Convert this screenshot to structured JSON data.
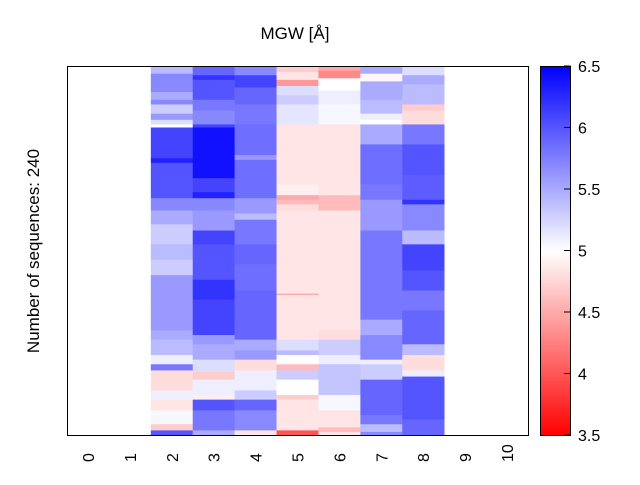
{
  "chart_data": {
    "type": "heatmap",
    "title": "MGW [Å]",
    "ylabel": "Number of sequences: 240",
    "xlabel": "",
    "x_ticks": [
      "0",
      "1",
      "2",
      "3",
      "4",
      "5",
      "6",
      "7",
      "8",
      "9",
      "10"
    ],
    "n_rows": 240,
    "colorbar": {
      "range": [
        3.5,
        6.5
      ],
      "center": 5,
      "ticks": [
        "3.5",
        "4",
        "4.5",
        "5",
        "5.5",
        "6",
        "6.5"
      ],
      "low_color": "#ff0000",
      "mid_color": "#ffffff",
      "high_color": "#0000ff"
    },
    "columns_note": "segments are [end_row, value]; columns 0,1,9,10 have no data",
    "columns": {
      "2": [
        [
          5,
          5.4
        ],
        [
          17,
          5.7
        ],
        [
          22,
          5.5
        ],
        [
          25,
          5.7
        ],
        [
          31,
          5.3
        ],
        [
          35,
          5.6
        ],
        [
          38,
          5.2
        ],
        [
          40,
          5.0
        ],
        [
          60,
          6.1
        ],
        [
          63,
          6.3
        ],
        [
          86,
          6.0
        ],
        [
          94,
          5.7
        ],
        [
          103,
          5.5
        ],
        [
          116,
          5.3
        ],
        [
          126,
          5.4
        ],
        [
          136,
          5.3
        ],
        [
          152,
          5.6
        ],
        [
          172,
          5.6
        ],
        [
          178,
          5.5
        ],
        [
          188,
          5.4
        ],
        [
          194,
          5.1
        ],
        [
          198,
          5.8
        ],
        [
          211,
          4.8
        ],
        [
          217,
          5.1
        ],
        [
          224,
          4.85
        ],
        [
          233,
          5.05
        ],
        [
          237,
          4.7
        ],
        [
          240,
          6.0
        ]
      ],
      "3": [
        [
          6,
          5.9
        ],
        [
          9,
          6.2
        ],
        [
          22,
          6.0
        ],
        [
          29,
          5.8
        ],
        [
          38,
          5.7
        ],
        [
          40,
          6.1
        ],
        [
          61,
          6.4
        ],
        [
          73,
          6.4
        ],
        [
          82,
          6.1
        ],
        [
          86,
          6.3
        ],
        [
          94,
          5.7
        ],
        [
          107,
          5.6
        ],
        [
          116,
          6.1
        ],
        [
          139,
          6.0
        ],
        [
          152,
          6.2
        ],
        [
          175,
          6.1
        ],
        [
          181,
          5.6
        ],
        [
          191,
          5.5
        ],
        [
          199,
          5.2
        ],
        [
          204,
          4.7
        ],
        [
          214,
          5.1
        ],
        [
          217,
          4.9
        ],
        [
          224,
          6.0
        ],
        [
          237,
          5.8
        ],
        [
          240,
          5.5
        ]
      ],
      "4": [
        [
          6,
          5.7
        ],
        [
          14,
          6.1
        ],
        [
          25,
          5.9
        ],
        [
          38,
          5.8
        ],
        [
          58,
          5.85
        ],
        [
          61,
          5.6
        ],
        [
          86,
          5.85
        ],
        [
          96,
          5.6
        ],
        [
          100,
          5.4
        ],
        [
          116,
          5.8
        ],
        [
          129,
          5.9
        ],
        [
          146,
          5.85
        ],
        [
          178,
          5.9
        ],
        [
          185,
          5.5
        ],
        [
          191,
          5.6
        ],
        [
          198,
          4.8
        ],
        [
          211,
          5.1
        ],
        [
          217,
          5.3
        ],
        [
          224,
          5.9
        ],
        [
          237,
          5.7
        ],
        [
          240,
          4.85
        ]
      ],
      "5": [
        [
          4,
          4.7
        ],
        [
          9,
          4.85
        ],
        [
          13,
          4.4
        ],
        [
          19,
          5.2
        ],
        [
          25,
          5.3
        ],
        [
          38,
          5.15
        ],
        [
          77,
          4.85
        ],
        [
          84,
          4.9
        ],
        [
          87,
          4.5
        ],
        [
          90,
          4.6
        ],
        [
          94,
          4.8
        ],
        [
          148,
          4.85
        ],
        [
          149,
          4.5
        ],
        [
          178,
          4.85
        ],
        [
          185,
          5.2
        ],
        [
          188,
          5.4
        ],
        [
          194,
          5.0
        ],
        [
          198,
          4.6
        ],
        [
          204,
          5.3
        ],
        [
          214,
          5.0
        ],
        [
          217,
          4.7
        ],
        [
          237,
          4.85
        ],
        [
          240,
          4.0
        ]
      ],
      "6": [
        [
          3,
          4.5
        ],
        [
          8,
          4.3
        ],
        [
          16,
          5.0
        ],
        [
          25,
          5.1
        ],
        [
          38,
          5.05
        ],
        [
          84,
          4.85
        ],
        [
          94,
          4.6
        ],
        [
          172,
          4.85
        ],
        [
          178,
          4.8
        ],
        [
          188,
          5.3
        ],
        [
          194,
          5.1
        ],
        [
          214,
          5.35
        ],
        [
          224,
          5.05
        ],
        [
          235,
          4.85
        ],
        [
          238,
          4.6
        ],
        [
          240,
          4.85
        ]
      ],
      "7": [
        [
          5,
          5.5
        ],
        [
          10,
          4.95
        ],
        [
          22,
          5.5
        ],
        [
          31,
          5.4
        ],
        [
          35,
          5.1
        ],
        [
          38,
          5.0
        ],
        [
          51,
          5.5
        ],
        [
          77,
          5.85
        ],
        [
          87,
          5.8
        ],
        [
          107,
          5.6
        ],
        [
          116,
          5.8
        ],
        [
          165,
          5.8
        ],
        [
          175,
          5.5
        ],
        [
          191,
          5.7
        ],
        [
          194,
          5.1
        ],
        [
          204,
          5.3
        ],
        [
          227,
          5.9
        ],
        [
          233,
          5.8
        ],
        [
          238,
          5.4
        ],
        [
          240,
          5.7
        ]
      ],
      "8": [
        [
          6,
          5.2
        ],
        [
          12,
          5.5
        ],
        [
          25,
          5.4
        ],
        [
          29,
          4.7
        ],
        [
          38,
          4.8
        ],
        [
          51,
          5.8
        ],
        [
          71,
          6.0
        ],
        [
          87,
          5.95
        ],
        [
          90,
          6.2
        ],
        [
          107,
          5.7
        ],
        [
          116,
          5.4
        ],
        [
          133,
          6.1
        ],
        [
          146,
          6.0
        ],
        [
          159,
          5.8
        ],
        [
          181,
          5.9
        ],
        [
          188,
          5.4
        ],
        [
          198,
          4.8
        ],
        [
          202,
          5.1
        ],
        [
          230,
          6.0
        ],
        [
          240,
          5.9
        ]
      ]
    }
  }
}
